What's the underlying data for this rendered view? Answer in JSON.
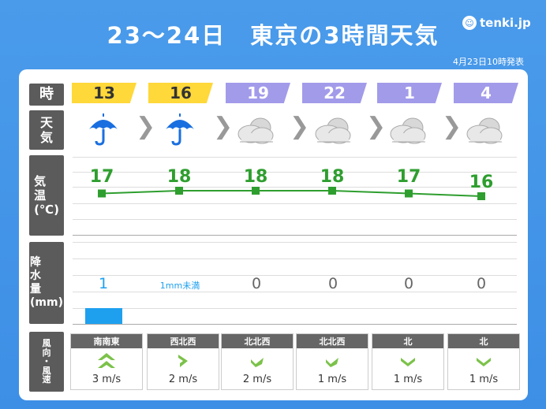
{
  "header": {
    "title": "23～24日　東京の3時間天気",
    "logo": "tenki.jp",
    "published": "4月23日10時発表"
  },
  "rows": {
    "hour": "時",
    "weather": "天\n気",
    "temperature": "気\n温\n(℃)",
    "precipitation": "降\n水\n量\n(mm)",
    "wind": "風\n向\n・\n風\n速"
  },
  "slots": [
    {
      "hour": "13",
      "weather": "rain",
      "weather_icon": "umbrella-icon",
      "temp": "17",
      "temp_value": 17,
      "precip": "1",
      "precip_mm": 1,
      "wind_dir": "南南東",
      "wind_speed": "3 m/s"
    },
    {
      "hour": "16",
      "weather": "rain",
      "weather_icon": "umbrella-icon",
      "temp": "18",
      "temp_value": 18,
      "precip": "1mm未満",
      "precip_mm": 0.5,
      "wind_dir": "西北西",
      "wind_speed": "2 m/s"
    },
    {
      "hour": "19",
      "weather": "cloudy",
      "weather_icon": "cloud-icon",
      "temp": "18",
      "temp_value": 18,
      "precip": "0",
      "precip_mm": 0,
      "wind_dir": "北北西",
      "wind_speed": "2 m/s"
    },
    {
      "hour": "22",
      "weather": "cloudy",
      "weather_icon": "cloud-icon",
      "temp": "18",
      "temp_value": 18,
      "precip": "0",
      "precip_mm": 0,
      "wind_dir": "北北西",
      "wind_speed": "1 m/s"
    },
    {
      "hour": "1",
      "weather": "cloudy",
      "weather_icon": "cloud-icon",
      "temp": "17",
      "temp_value": 17,
      "precip": "0",
      "precip_mm": 0,
      "wind_dir": "北",
      "wind_speed": "1 m/s"
    },
    {
      "hour": "4",
      "weather": "cloudy",
      "weather_icon": "cloud-icon",
      "temp": "16",
      "temp_value": 16,
      "precip": "0",
      "precip_mm": 0,
      "wind_dir": "北",
      "wind_speed": "1 m/s"
    }
  ],
  "colors": {
    "background": "#3d8fe6",
    "day_header": "#ffd83a",
    "night_header": "#a29bea",
    "temperature": "#2e9e2e",
    "rain": "#1ea0ef"
  }
}
